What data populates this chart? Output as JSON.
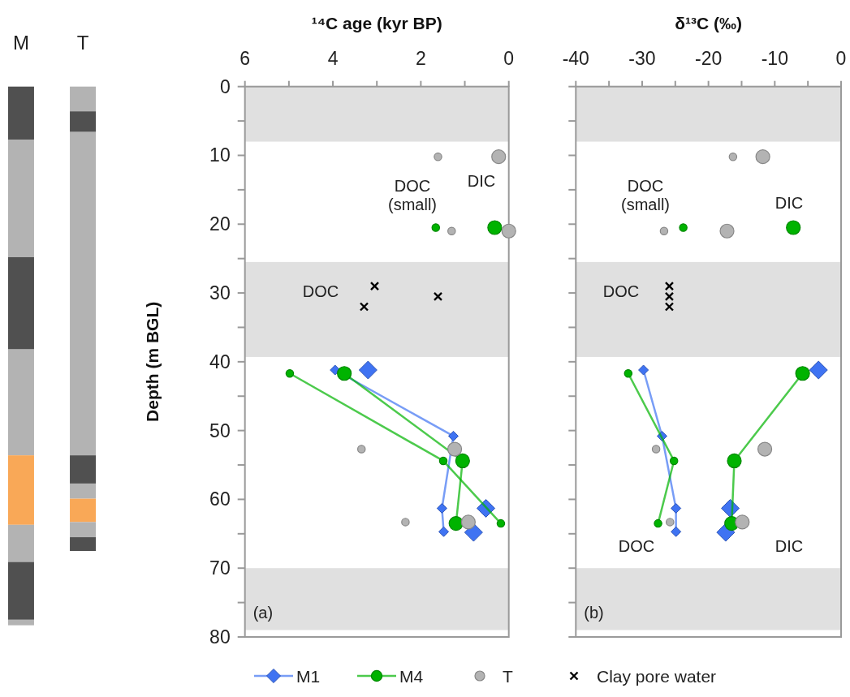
{
  "chart_data": [
    {
      "type": "bar",
      "stacked": true,
      "categories": [
        "M",
        "T"
      ],
      "ylim": [
        80,
        0
      ],
      "tick_labels": "x",
      "series": [
        {
          "colors": [
            "#505050",
            "#b3b3b3"
          ],
          "values": [
            7.7,
            3.6
          ]
        },
        {
          "colors": [
            "#b3b3b3",
            "#505050"
          ],
          "values": [
            17.1,
            3.0
          ]
        },
        {
          "colors": [
            "#505050",
            "#b3b3b3"
          ],
          "values": [
            13.4,
            47.0
          ]
        },
        {
          "colors": [
            "#b3b3b3",
            "#505050"
          ],
          "values": [
            15.4,
            4.1
          ]
        },
        {
          "colors": [
            "#f9a857",
            "#b3b3b3"
          ],
          "values": [
            10.1,
            2.2
          ]
        },
        {
          "colors": [
            "#b3b3b3",
            "#f9a857"
          ],
          "values": [
            5.4,
            3.4
          ]
        },
        {
          "colors": [
            "#505050",
            "#b3b3b3"
          ],
          "values": [
            8.4,
            2.2
          ]
        },
        {
          "colors": [
            "#b3b3b3",
            "#505050"
          ],
          "values": [
            0.8,
            2.0
          ]
        }
      ]
    },
    {
      "type": "scatter",
      "xlabel": "¹⁴C age (kyr BP)",
      "ylabel": "Depth (m BGL)",
      "xlim": [
        6,
        0
      ],
      "ylim": [
        80,
        0
      ],
      "xticks": [
        6,
        {
          "value": 5,
          "label": null
        },
        4,
        {
          "value": 3,
          "label": null
        },
        2,
        {
          "value": 1,
          "label": null
        },
        0
      ],
      "yticks": [
        0,
        {
          "value": 5,
          "label": null
        },
        10,
        {
          "value": 15,
          "label": null
        },
        20,
        {
          "value": 25,
          "label": null
        },
        30,
        {
          "value": 35,
          "label": null
        },
        40,
        {
          "value": 45,
          "label": null
        },
        50,
        {
          "value": 55,
          "label": null
        },
        60,
        {
          "value": 65,
          "label": null
        },
        70,
        {
          "value": 75,
          "label": null
        },
        80
      ],
      "legend": "bottom",
      "bands": [
        {
          "axis": "y",
          "from": 0,
          "to": 8,
          "color": "#e0e0e0"
        },
        {
          "axis": "y",
          "from": 25.5,
          "to": 39.3,
          "color": "#e0e0e0"
        },
        {
          "axis": "y",
          "from": 70,
          "to": 79,
          "color": "#e0e0e0"
        }
      ],
      "annotations": [
        "DOC\n(small)",
        "DIC",
        "DOC",
        "(a)"
      ],
      "series": [
        {
          "name": "M1",
          "type": "line",
          "marker": "diamond",
          "color": "#3f73f2",
          "x": [
            3.95,
            1.26,
            1.52,
            1.48
          ],
          "values": [
            41.2,
            50.8,
            61.3,
            64.7
          ]
        },
        {
          "type": "scatter",
          "marker": "diamond",
          "color": "#3f73f2",
          "x": [
            3.2,
            0.52,
            0.8
          ],
          "values": [
            41.2,
            61.3,
            64.8
          ],
          "sizes": [
            1,
            1,
            1
          ]
        },
        {
          "name": "M4",
          "type": "line",
          "marker": "circle",
          "color": "#00b300",
          "x": [
            4.98,
            1.49,
            0.18
          ],
          "values": [
            41.7,
            54.4,
            63.5
          ]
        },
        {
          "type": "scatter",
          "marker": "circle",
          "color": "#00b300",
          "x": [
            1.66
          ],
          "values": [
            20.5
          ],
          "sizes": [
            0.3
          ]
        },
        {
          "type": "line",
          "marker": "none",
          "color": "#00b300",
          "x": [
            3.74,
            1.05,
            1.2
          ],
          "values": [
            41.7,
            54.4,
            63.5
          ]
        },
        {
          "type": "scatter",
          "marker": "circle",
          "color": "#00b300",
          "x": [
            0.32,
            3.74,
            1.05,
            1.2
          ],
          "values": [
            20.5,
            41.7,
            54.4,
            63.5
          ],
          "sizes": [
            1,
            1,
            1,
            1
          ]
        },
        {
          "name": "T",
          "type": "scatter",
          "marker": "circle",
          "color": "#b3b3b3",
          "x": [
            1.61,
            1.3,
            3.35,
            2.35
          ],
          "values": [
            10.2,
            21.0,
            52.7,
            63.3
          ],
          "sizes": [
            0.3,
            0.3,
            0.3,
            0.3
          ]
        },
        {
          "type": "scatter",
          "marker": "circle",
          "color": "#b3b3b3",
          "x": [
            0.23,
            0.0,
            1.23,
            0.92
          ],
          "values": [
            10.2,
            21.0,
            52.7,
            63.3
          ],
          "sizes": [
            1,
            1,
            1,
            1
          ]
        },
        {
          "name": "Clay pore water",
          "type": "scatter",
          "marker": "cross",
          "color": "#000000",
          "x": [
            3.05,
            3.29,
            1.61
          ],
          "values": [
            29.0,
            32.0,
            30.5
          ]
        }
      ]
    },
    {
      "type": "scatter",
      "xlabel": "δ¹³C (‰)",
      "xlim": [
        -40,
        0
      ],
      "ylim": [
        80,
        0
      ],
      "tick_labels": "x",
      "xticks": [
        -40,
        {
          "value": -35,
          "label": null
        },
        -30,
        {
          "value": -25,
          "label": null
        },
        -20,
        {
          "value": -15,
          "label": null
        },
        -10,
        {
          "value": -5,
          "label": null
        },
        0
      ],
      "yticks": [
        0,
        {
          "value": 5,
          "label": null
        },
        10,
        {
          "value": 15,
          "label": null
        },
        20,
        {
          "value": 25,
          "label": null
        },
        30,
        {
          "value": 35,
          "label": null
        },
        40,
        {
          "value": 45,
          "label": null
        },
        50,
        {
          "value": 55,
          "label": null
        },
        60,
        {
          "value": 65,
          "label": null
        },
        70,
        {
          "value": 75,
          "label": null
        },
        80
      ],
      "bands": [
        {
          "axis": "y",
          "from": 0,
          "to": 8,
          "color": "#e0e0e0"
        },
        {
          "axis": "y",
          "from": 25.5,
          "to": 39.3,
          "color": "#e0e0e0"
        },
        {
          "axis": "y",
          "from": 70,
          "to": 79,
          "color": "#e0e0e0"
        }
      ],
      "annotations": [
        "DOC\n(small)",
        "DIC",
        "DOC",
        "DOC",
        "DIC",
        "(b)"
      ],
      "series": [
        {
          "type": "line",
          "marker": "diamond",
          "color": "#3f73f2",
          "x": [
            -29.8,
            -27.0,
            -24.9,
            -24.9
          ],
          "values": [
            41.2,
            50.8,
            61.3,
            64.7
          ]
        },
        {
          "type": "scatter",
          "marker": "diamond",
          "color": "#3f73f2",
          "x": [
            -3.4,
            -16.7,
            -17.4
          ],
          "values": [
            41.2,
            61.3,
            64.8
          ],
          "sizes": [
            1,
            1,
            1
          ]
        },
        {
          "type": "line",
          "marker": "circle",
          "color": "#00b300",
          "x": [
            -32.1,
            -25.2,
            -27.6
          ],
          "values": [
            41.7,
            54.4,
            63.5
          ]
        },
        {
          "type": "scatter",
          "marker": "circle",
          "color": "#00b300",
          "x": [
            -23.8
          ],
          "values": [
            20.5
          ],
          "sizes": [
            0.3
          ]
        },
        {
          "type": "line",
          "marker": "none",
          "color": "#00b300",
          "x": [
            -5.8,
            -16.1,
            -16.5
          ],
          "values": [
            41.7,
            54.4,
            63.5
          ]
        },
        {
          "type": "scatter",
          "marker": "circle",
          "color": "#00b300",
          "x": [
            -7.2,
            -5.8,
            -16.1,
            -16.5
          ],
          "values": [
            20.5,
            41.7,
            54.4,
            63.5
          ],
          "sizes": [
            1,
            1,
            1,
            1
          ]
        },
        {
          "type": "scatter",
          "marker": "circle",
          "color": "#b3b3b3",
          "x": [
            -16.3,
            -26.7,
            -27.9,
            -25.8
          ],
          "values": [
            10.2,
            21.0,
            52.7,
            63.3
          ],
          "sizes": [
            0.3,
            0.3,
            0.3,
            0.3
          ]
        },
        {
          "type": "scatter",
          "marker": "circle",
          "color": "#b3b3b3",
          "x": [
            -11.8,
            -17.2,
            -11.5,
            -14.9
          ],
          "values": [
            10.2,
            21.0,
            52.7,
            63.3
          ],
          "sizes": [
            1,
            1,
            1,
            1
          ]
        },
        {
          "type": "scatter",
          "marker": "cross",
          "color": "#000000",
          "x": [
            -25.9,
            -25.9,
            -25.9
          ],
          "values": [
            29.0,
            30.5,
            32.0
          ]
        }
      ]
    }
  ]
}
